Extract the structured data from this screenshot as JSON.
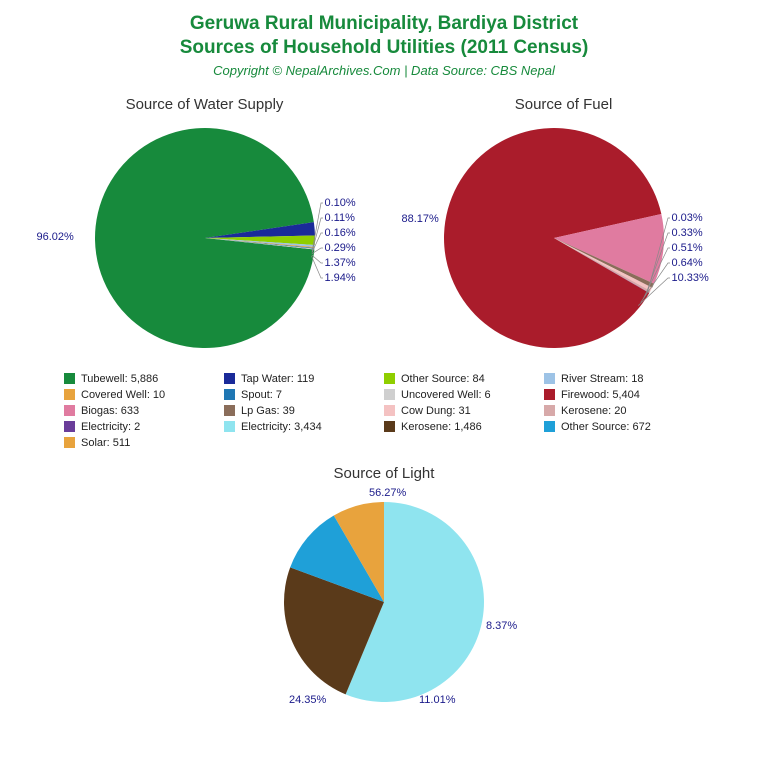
{
  "title_line1": "Geruwa Rural Municipality, Bardiya District",
  "title_line2": "Sources of Household Utilities (2011 Census)",
  "subtitle": "Copyright © NepalArchives.Com | Data Source: CBS Nepal",
  "title_color": "#178a3c",
  "label_color": "#1a1a8a",
  "chart_water": {
    "title": "Source of Water Supply",
    "radius": 110,
    "dominant_pct": "96.02%",
    "small_pcts": [
      "0.10%",
      "0.11%",
      "0.16%",
      "0.29%",
      "1.37%",
      "1.94%"
    ],
    "slices": [
      {
        "color": "#178a3c",
        "value": 96.02
      },
      {
        "color": "#1a2a99",
        "value": 1.94
      },
      {
        "color": "#8fce00",
        "value": 1.37
      },
      {
        "color": "#9dc3e6",
        "value": 0.29
      },
      {
        "color": "#e8a33d",
        "value": 0.16
      },
      {
        "color": "#1f77b4",
        "value": 0.11
      },
      {
        "color": "#cfcfcf",
        "value": 0.1
      }
    ]
  },
  "chart_fuel": {
    "title": "Source of Fuel",
    "radius": 110,
    "dominant_pct": "88.17%",
    "small_pcts": [
      "0.03%",
      "0.33%",
      "0.51%",
      "0.64%",
      "10.33%"
    ],
    "slices": [
      {
        "color": "#aa1c2b",
        "value": 88.17
      },
      {
        "color": "#e07ba0",
        "value": 10.33
      },
      {
        "color": "#8a6d5a",
        "value": 0.64
      },
      {
        "color": "#f4c2c2",
        "value": 0.51
      },
      {
        "color": "#d7a9a9",
        "value": 0.33
      },
      {
        "color": "#6a3d9a",
        "value": 0.03
      }
    ]
  },
  "chart_light": {
    "title": "Source of Light",
    "radius": 100,
    "pcts": {
      "elec": "56.27%",
      "kero": "24.35%",
      "other": "11.01%",
      "solar": "8.37%"
    },
    "slices": [
      {
        "color": "#8fe4ef",
        "value": 56.27
      },
      {
        "color": "#5a3a1a",
        "value": 24.35
      },
      {
        "color": "#1fa0d8",
        "value": 11.01
      },
      {
        "color": "#e8a33d",
        "value": 8.37
      }
    ]
  },
  "legend": [
    {
      "color": "#178a3c",
      "label": "Tubewell: 5,886"
    },
    {
      "color": "#1a2a99",
      "label": "Tap Water: 119"
    },
    {
      "color": "#8fce00",
      "label": "Other Source: 84"
    },
    {
      "color": "#9dc3e6",
      "label": "River Stream: 18"
    },
    {
      "color": "#e8a33d",
      "label": "Covered Well: 10"
    },
    {
      "color": "#1f77b4",
      "label": "Spout: 7"
    },
    {
      "color": "#cfcfcf",
      "label": "Uncovered Well: 6"
    },
    {
      "color": "#aa1c2b",
      "label": "Firewood: 5,404"
    },
    {
      "color": "#e07ba0",
      "label": "Biogas: 633"
    },
    {
      "color": "#8a6d5a",
      "label": "Lp Gas: 39"
    },
    {
      "color": "#f4c2c2",
      "label": "Cow Dung: 31"
    },
    {
      "color": "#d7a9a9",
      "label": "Kerosene: 20"
    },
    {
      "color": "#6a3d9a",
      "label": "Electricity: 2"
    },
    {
      "color": "#8fe4ef",
      "label": "Electricity: 3,434"
    },
    {
      "color": "#5a3a1a",
      "label": "Kerosene: 1,486"
    },
    {
      "color": "#1fa0d8",
      "label": "Other Source: 672"
    },
    {
      "color": "#e8a33d",
      "label": "Solar: 511"
    }
  ]
}
